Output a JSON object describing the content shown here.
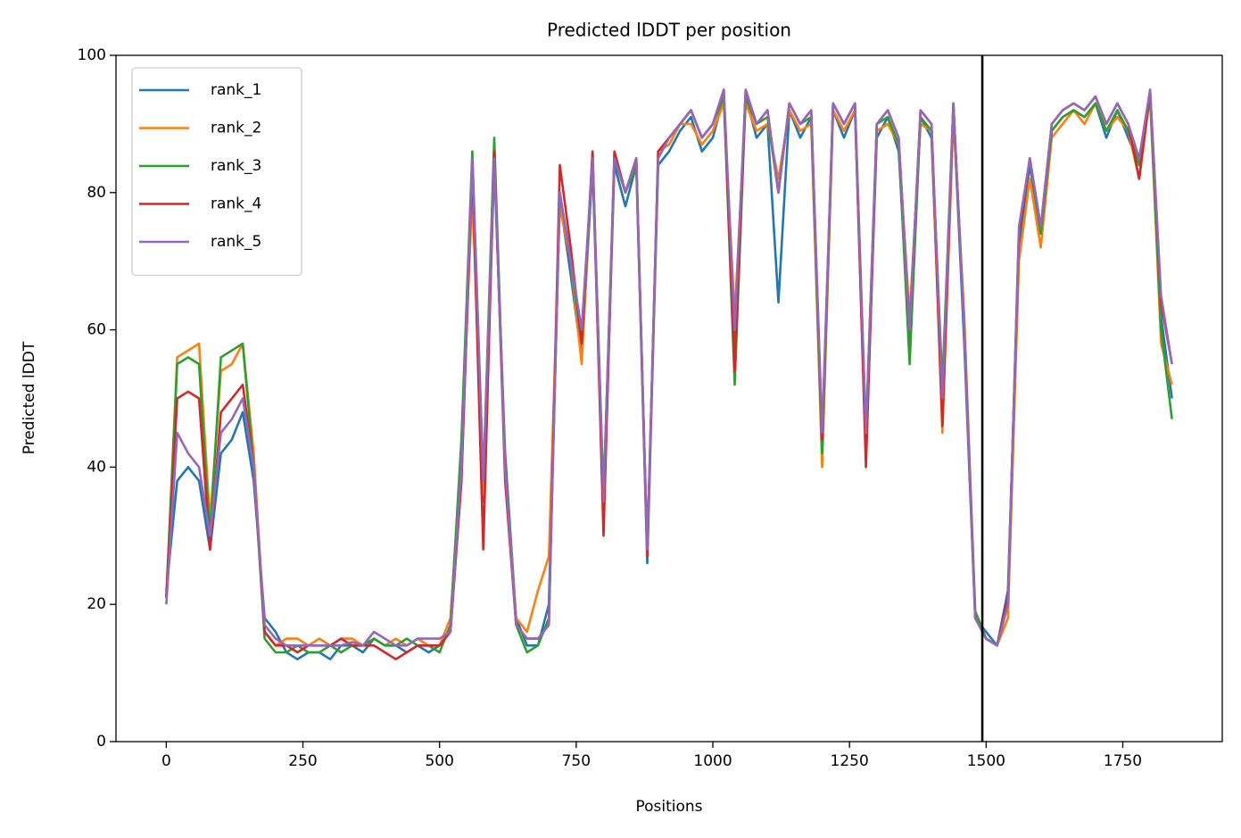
{
  "chart_data": {
    "type": "line",
    "title": "Predicted lDDT per position",
    "xlabel": "Positions",
    "ylabel": "Predicted lDDT",
    "x": [
      0,
      20,
      40,
      60,
      80,
      100,
      120,
      140,
      160,
      180,
      200,
      220,
      240,
      260,
      280,
      300,
      320,
      340,
      360,
      380,
      400,
      420,
      440,
      460,
      480,
      500,
      520,
      540,
      560,
      580,
      600,
      620,
      640,
      660,
      680,
      700,
      720,
      740,
      760,
      780,
      800,
      820,
      840,
      860,
      880,
      900,
      920,
      940,
      960,
      980,
      1000,
      1020,
      1040,
      1060,
      1080,
      1100,
      1120,
      1140,
      1160,
      1180,
      1200,
      1220,
      1240,
      1260,
      1280,
      1300,
      1320,
      1340,
      1360,
      1380,
      1400,
      1420,
      1440,
      1460,
      1480,
      1500,
      1520,
      1540,
      1560,
      1580,
      1600,
      1620,
      1640,
      1660,
      1680,
      1700,
      1720,
      1740,
      1760,
      1780,
      1800,
      1820,
      1840
    ],
    "series": [
      {
        "name": "rank_1",
        "color": "#1f77b4",
        "values": [
          22,
          38,
          40,
          38,
          28,
          42,
          44,
          48,
          38,
          18,
          16,
          13,
          12,
          13,
          13,
          12,
          14,
          14,
          13,
          15,
          14,
          14,
          13,
          14,
          13,
          14,
          16,
          38,
          84,
          35,
          84,
          42,
          18,
          14,
          14,
          20,
          79,
          68,
          56,
          84,
          33,
          84,
          78,
          84,
          26,
          84,
          86,
          89,
          91,
          86,
          88,
          94,
          58,
          94,
          88,
          90,
          64,
          92,
          88,
          91,
          42,
          92,
          88,
          92,
          42,
          88,
          91,
          86,
          58,
          91,
          88,
          48,
          92,
          58,
          18,
          16,
          14,
          22,
          72,
          84,
          74,
          89,
          91,
          92,
          91,
          93,
          88,
          92,
          88,
          84,
          94,
          62,
          50
        ]
      },
      {
        "name": "rank_2",
        "color": "#ff7f0e",
        "values": [
          21,
          56,
          57,
          58,
          32,
          54,
          55,
          58,
          42,
          16,
          14,
          15,
          15,
          14,
          15,
          14,
          15,
          15,
          14,
          15,
          14,
          15,
          14,
          15,
          14,
          14,
          18,
          42,
          80,
          36,
          86,
          40,
          18,
          16,
          22,
          27,
          78,
          70,
          55,
          86,
          34,
          86,
          80,
          85,
          27,
          86,
          87,
          90,
          90,
          87,
          89,
          93,
          62,
          93,
          89,
          90,
          82,
          92,
          89,
          90,
          40,
          92,
          89,
          92,
          44,
          89,
          90,
          87,
          62,
          90,
          89,
          45,
          91,
          62,
          19,
          15,
          14,
          18,
          70,
          82,
          72,
          88,
          90,
          92,
          90,
          93,
          89,
          91,
          89,
          82,
          94,
          58,
          52
        ]
      },
      {
        "name": "rank_3",
        "color": "#2ca02c",
        "values": [
          21,
          55,
          56,
          55,
          30,
          56,
          57,
          58,
          40,
          15,
          13,
          13,
          14,
          13,
          13,
          14,
          13,
          14,
          14,
          15,
          14,
          14,
          15,
          14,
          14,
          13,
          17,
          44,
          86,
          38,
          88,
          40,
          17,
          13,
          14,
          18,
          80,
          70,
          58,
          85,
          36,
          85,
          80,
          84,
          28,
          85,
          88,
          90,
          92,
          88,
          90,
          94,
          52,
          94,
          90,
          91,
          80,
          93,
          90,
          91,
          42,
          93,
          90,
          93,
          45,
          90,
          91,
          87,
          55,
          91,
          89,
          52,
          93,
          60,
          19,
          15,
          14,
          20,
          74,
          85,
          74,
          89,
          91,
          92,
          91,
          93,
          89,
          92,
          89,
          84,
          94,
          60,
          47
        ]
      },
      {
        "name": "rank_4",
        "color": "#d62728",
        "values": [
          21,
          50,
          51,
          50,
          28,
          48,
          50,
          52,
          40,
          16,
          14,
          14,
          13,
          14,
          14,
          14,
          15,
          14,
          14,
          14,
          13,
          12,
          13,
          14,
          14,
          14,
          16,
          38,
          84,
          28,
          86,
          38,
          17,
          15,
          15,
          17,
          84,
          72,
          58,
          86,
          30,
          86,
          80,
          85,
          27,
          86,
          88,
          90,
          92,
          88,
          90,
          95,
          54,
          95,
          90,
          92,
          80,
          93,
          90,
          92,
          44,
          93,
          90,
          93,
          40,
          90,
          92,
          88,
          60,
          92,
          90,
          46,
          93,
          60,
          18,
          15,
          14,
          21,
          74,
          85,
          75,
          90,
          92,
          93,
          92,
          94,
          90,
          93,
          90,
          82,
          95,
          64,
          55
        ]
      },
      {
        "name": "rank_5",
        "color": "#9467bd",
        "values": [
          20,
          45,
          42,
          40,
          30,
          45,
          47,
          50,
          40,
          17,
          15,
          14,
          14,
          14,
          14,
          14,
          14,
          14.5,
          14,
          16,
          15,
          14,
          14,
          15,
          15,
          15,
          16,
          40,
          85,
          38,
          85,
          40,
          17,
          15,
          15,
          17,
          80,
          70,
          60,
          85,
          35,
          85,
          80,
          85,
          28,
          85,
          88,
          90,
          92,
          88,
          90,
          95,
          60,
          95,
          90,
          92,
          80,
          93,
          90,
          92,
          45,
          93,
          90,
          93,
          45,
          90,
          92,
          88,
          60,
          92,
          90,
          50,
          93,
          60,
          18,
          15,
          14,
          20,
          75,
          85,
          75,
          90,
          92,
          93,
          92,
          94,
          90,
          93,
          90,
          85,
          95,
          65,
          55
        ]
      }
    ],
    "vlines": [
      1493
    ],
    "vline_color": "#000000",
    "xlim": [
      -92,
      1932
    ],
    "ylim": [
      0,
      100
    ],
    "xticks": [
      0,
      250,
      500,
      750,
      1000,
      1250,
      1500,
      1750
    ],
    "yticks": [
      0,
      20,
      40,
      60,
      80,
      100
    ],
    "grid": false,
    "legend": "upper left"
  }
}
